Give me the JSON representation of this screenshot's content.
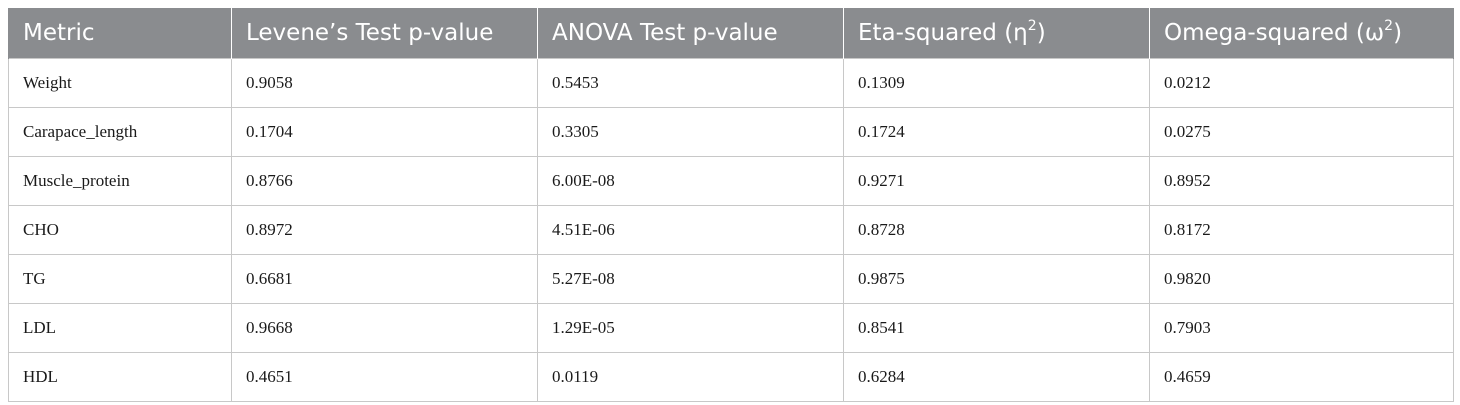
{
  "table": {
    "headers": [
      {
        "text": "Metric"
      },
      {
        "text": "Levene’s Test p-value"
      },
      {
        "text": "ANOVA Test p-value"
      },
      {
        "text": "Eta-squared (η",
        "sup": "2",
        "after": ")"
      },
      {
        "text": "Omega-squared (ω",
        "sup": "2",
        "after": ")"
      }
    ],
    "rows": [
      [
        "Weight",
        "0.9058",
        "0.5453",
        "0.1309",
        "0.0212"
      ],
      [
        "Carapace_length",
        "0.1704",
        "0.3305",
        "0.1724",
        "0.0275"
      ],
      [
        "Muscle_protein",
        "0.8766",
        "6.00E-08",
        "0.9271",
        "0.8952"
      ],
      [
        "CHO",
        "0.8972",
        "4.51E-06",
        "0.8728",
        "0.8172"
      ],
      [
        "TG",
        "0.6681",
        "5.27E-08",
        "0.9875",
        "0.9820"
      ],
      [
        "LDL",
        "0.9668",
        "1.29E-05",
        "0.8541",
        "0.7903"
      ],
      [
        "HDL",
        "0.4651",
        "0.0119",
        "0.6284",
        "0.4659"
      ]
    ]
  },
  "colors": {
    "header_bg": "#8a8c8f",
    "header_text": "#ffffff",
    "cell_border": "#c8c8c8"
  }
}
